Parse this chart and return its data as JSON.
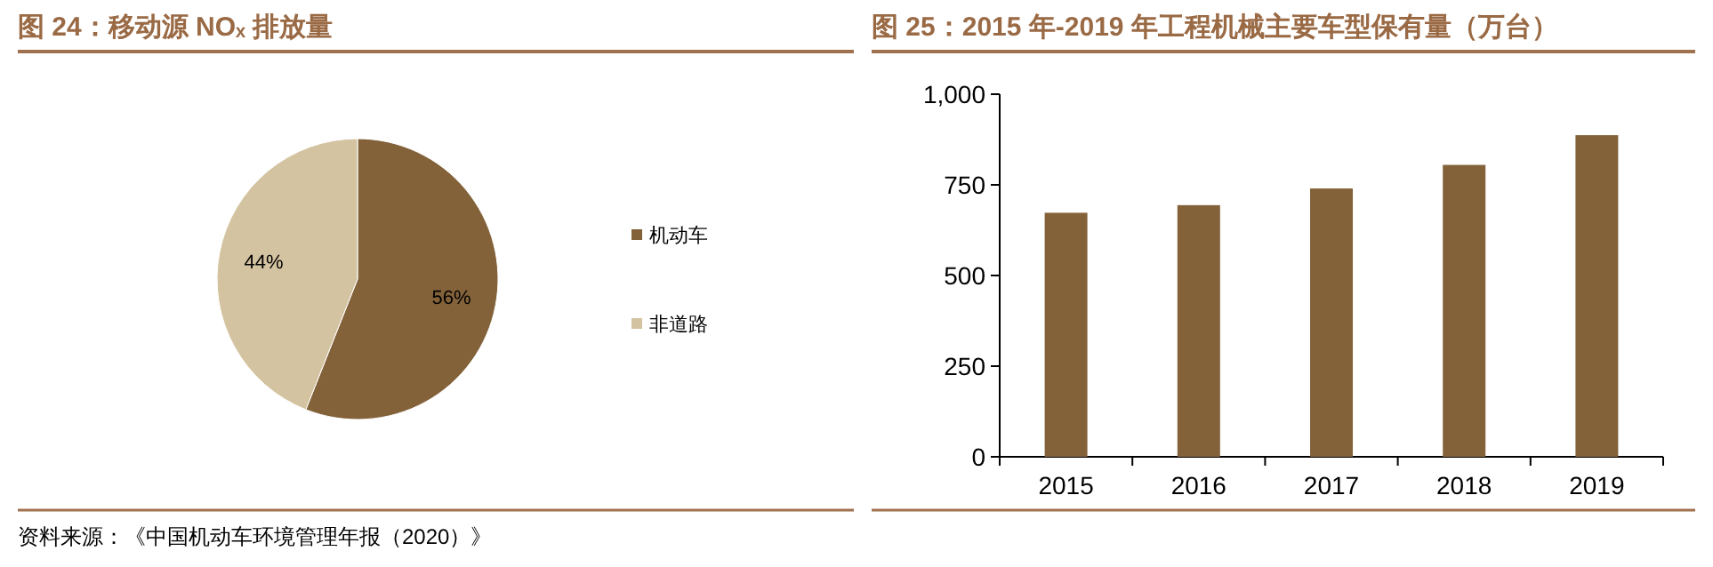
{
  "chart_data": [
    {
      "type": "pie",
      "title": "图 24：移动源 NOₓ 排放量",
      "categories": [
        "机动车",
        "非道路"
      ],
      "values": [
        56,
        44
      ],
      "colors": [
        "#83623a",
        "#d4c3a0"
      ],
      "value_labels": [
        "56%",
        "44%"
      ],
      "legend": "right",
      "annotations": [
        "资料来源：《中国机动车环境管理年报（2020）》"
      ]
    },
    {
      "type": "bar",
      "title": "图 25：2015 年-2019 年工程机械主要车型保有量（万台）",
      "categories": [
        "2015",
        "2016",
        "2017",
        "2018",
        "2019"
      ],
      "values": [
        673,
        694,
        740,
        805,
        887
      ],
      "color": "#83623a",
      "ylim": [
        0,
        1000
      ],
      "yticks": [
        0,
        250,
        500,
        750,
        {
          "value": 1000,
          "label": "1,000"
        }
      ]
    }
  ]
}
